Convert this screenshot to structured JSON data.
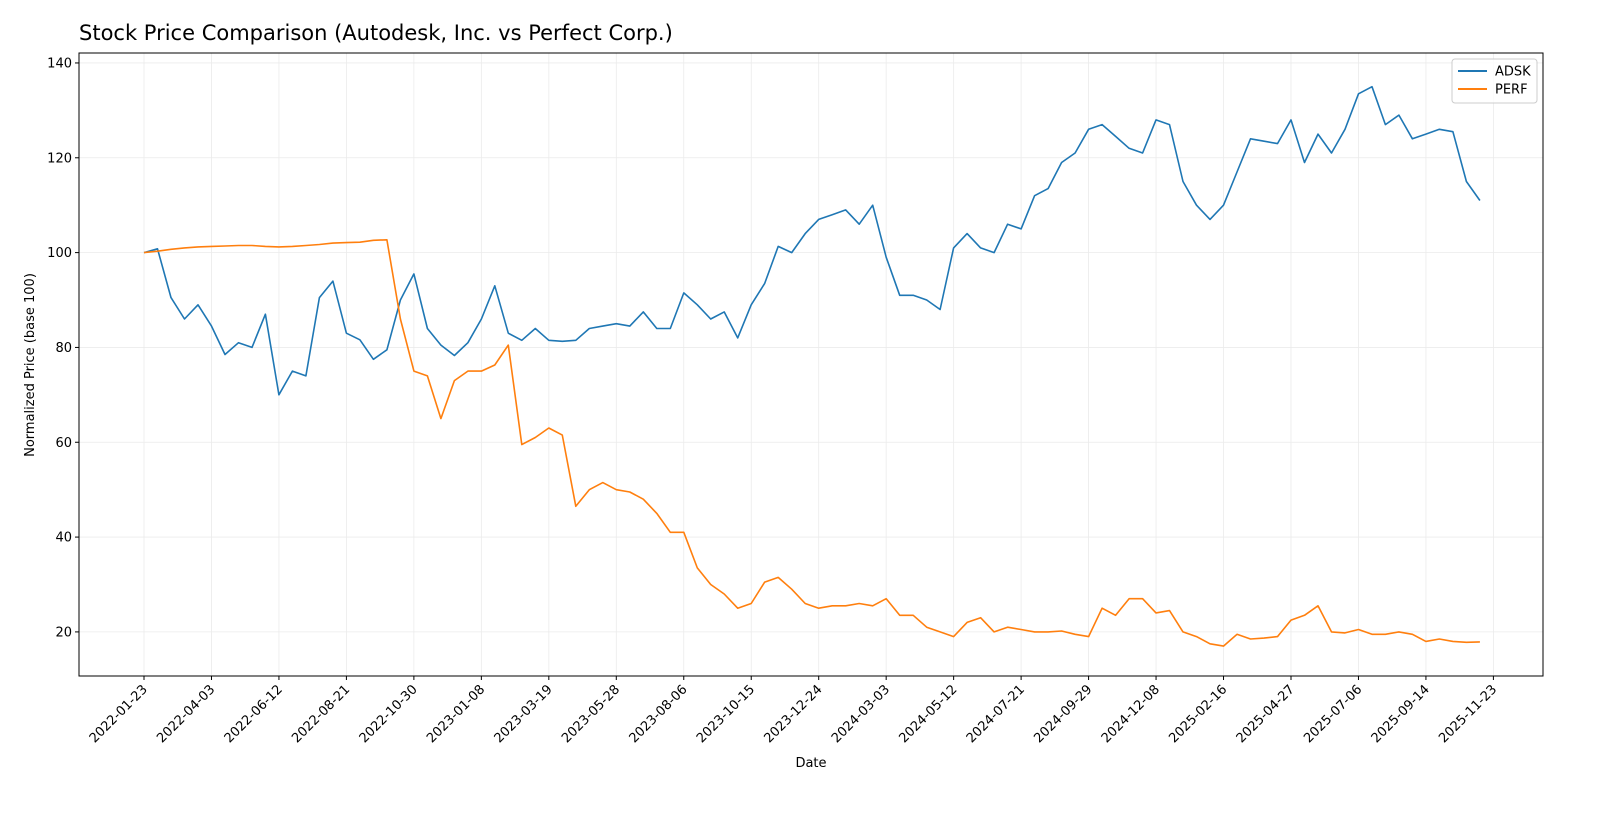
{
  "chart_data": {
    "type": "line",
    "title": "Stock Price Comparison (Autodesk, Inc. vs Perfect Corp.)",
    "xlabel": "Date",
    "ylabel": "Normalized Price (base 100)",
    "x_start_date": "2022-01-23",
    "x_step_days": 14,
    "ylim": [
      10.7,
      142.1
    ],
    "yticks": [
      20,
      40,
      60,
      80,
      100,
      120,
      140
    ],
    "xtick_labels": [
      "2022-01-23",
      "2022-04-03",
      "2022-06-12",
      "2022-08-21",
      "2022-10-30",
      "2023-01-08",
      "2023-03-19",
      "2023-05-28",
      "2023-08-06",
      "2023-10-15",
      "2023-12-24",
      "2024-03-03",
      "2024-05-12",
      "2024-07-21",
      "2024-09-29",
      "2024-12-08",
      "2025-02-16",
      "2025-04-27",
      "2025-07-06",
      "2025-09-14",
      "2025-11-23"
    ],
    "xtick_interval_days": 70,
    "grid": true,
    "legend_position": "top-right",
    "series": [
      {
        "name": "ADSK",
        "color": "#1f77b4",
        "values": [
          100,
          100.8,
          90.5,
          86,
          89,
          84.5,
          78.5,
          81,
          80,
          87,
          70,
          75,
          74,
          90.5,
          94,
          83,
          81.6,
          77.5,
          79.5,
          90,
          95.5,
          84,
          80.5,
          78.3,
          81,
          86,
          93,
          83,
          81.5,
          84,
          81.5,
          81.3,
          81.5,
          84,
          84.5,
          85,
          84.5,
          87.5,
          84,
          84,
          91.5,
          89,
          86,
          87.5,
          82,
          89,
          93.5,
          101.3,
          100,
          104,
          107,
          108,
          109,
          106,
          110,
          99,
          91,
          91,
          90,
          88,
          101,
          104,
          101,
          100,
          106,
          105,
          112,
          113.5,
          119,
          121,
          126,
          127,
          124.5,
          122,
          121,
          128,
          127,
          115,
          110,
          107,
          110,
          117,
          124,
          123.5,
          123,
          128,
          119,
          125,
          121,
          126,
          133.5,
          135,
          127,
          129,
          124,
          125,
          126,
          125.5,
          115,
          111
        ]
      },
      {
        "name": "PERF",
        "color": "#ff7f0e",
        "values": [
          100,
          100.3,
          100.7,
          101,
          101.2,
          101.3,
          101.4,
          101.5,
          101.5,
          101.3,
          101.2,
          101.3,
          101.5,
          101.7,
          102,
          102.1,
          102.2,
          102.6,
          102.7,
          86,
          75,
          74,
          65,
          73,
          75,
          75,
          76.3,
          80.5,
          59.5,
          61,
          63,
          61.5,
          46.5,
          50,
          51.5,
          50,
          49.5,
          48,
          45,
          41,
          41,
          33.5,
          30,
          28,
          25,
          26,
          30.5,
          31.5,
          29,
          26,
          25,
          25.5,
          25.5,
          26,
          25.5,
          27,
          23.5,
          23.5,
          21,
          20,
          19,
          22,
          23,
          20,
          21,
          20.5,
          20,
          20,
          20.2,
          19.5,
          19,
          25,
          23.5,
          27,
          27,
          24,
          24.5,
          20,
          19,
          17.5,
          17,
          19.5,
          18.5,
          18.7,
          19,
          22.5,
          23.5,
          25.5,
          20,
          19.8,
          20.5,
          19.5,
          19.5,
          20,
          19.5,
          18,
          18.5,
          18,
          17.8,
          17.9
        ]
      }
    ]
  }
}
